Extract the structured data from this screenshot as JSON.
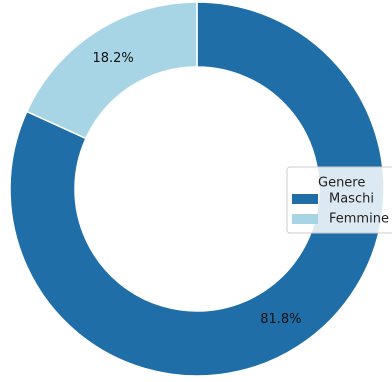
{
  "chart_data": {
    "type": "pie",
    "variant": "donut",
    "categories": [
      "Maschi",
      "Femmine"
    ],
    "values": [
      81.8,
      18.2
    ],
    "value_labels": [
      "81.8%",
      "18.2%"
    ],
    "colors": [
      "#1f6ea8",
      "#a8d5e6"
    ],
    "start_angle_deg": 90,
    "direction": "clockwise",
    "legend": {
      "title": "Genere",
      "placement": "right",
      "entries": [
        "Maschi",
        "Femmine"
      ]
    }
  }
}
